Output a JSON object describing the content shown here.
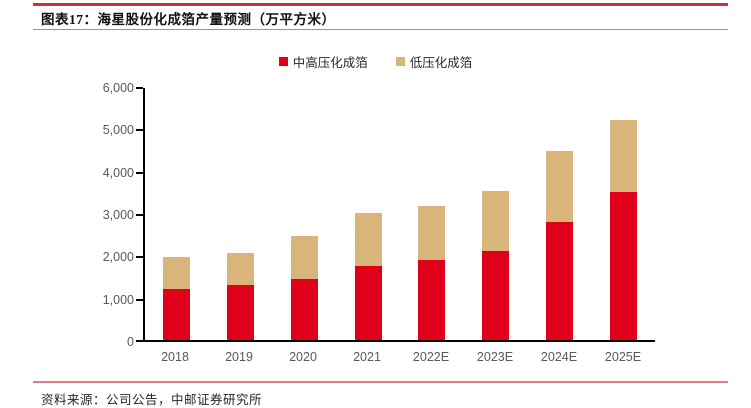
{
  "header": {
    "title": "图表17：海星股份化成箔产量预测（万平方米）"
  },
  "footer": {
    "source": "资料来源：公司公告，中邮证券研究所"
  },
  "colors": {
    "series_red": "#e00019",
    "series_tan": "#d9b57c",
    "header_rule": "#cf2f36",
    "thin_rule": "#e4737a",
    "footer_rule": "#dd7b80",
    "axis": "#000000",
    "tick_label": "#595959"
  },
  "chart_data": {
    "type": "bar",
    "stacked": true,
    "title": "海星股份化成箔产量预测（万平方米）",
    "categories": [
      "2018",
      "2019",
      "2020",
      "2021",
      "2022E",
      "2023E",
      "2024E",
      "2025E"
    ],
    "series": [
      {
        "name": "中高压化成箔",
        "color": "#e00019",
        "values": [
          1200,
          1300,
          1450,
          1760,
          1900,
          2100,
          2800,
          3500
        ]
      },
      {
        "name": "低压化成箔",
        "color": "#d9b57c",
        "values": [
          750,
          760,
          1000,
          1250,
          1270,
          1420,
          1670,
          1690
        ]
      }
    ],
    "totals": [
      1950,
      2060,
      2450,
      3010,
      3170,
      3520,
      4470,
      5190
    ],
    "xlabel": "",
    "ylabel": "",
    "ylim": [
      0,
      6000
    ],
    "ytick_values": [
      0,
      1000,
      2000,
      3000,
      4000,
      5000,
      6000
    ],
    "ytick_labels": [
      "0",
      "1,000",
      "2,000",
      "3,000",
      "4,000",
      "5,000",
      "6,000"
    ],
    "grid": false,
    "legend_position": "top-center"
  }
}
